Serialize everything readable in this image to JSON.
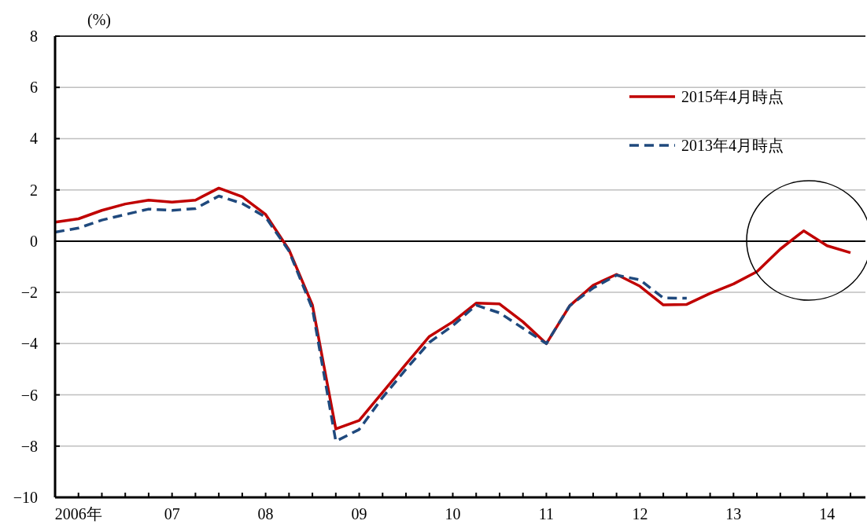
{
  "chart_data": {
    "type": "line",
    "ylabel": "(%)",
    "categories": [
      null,
      "2006年",
      null,
      null,
      null,
      "07",
      null,
      null,
      null,
      "08",
      null,
      null,
      null,
      "09",
      null,
      null,
      null,
      "10",
      null,
      null,
      null,
      "11",
      null,
      null,
      null,
      "12",
      null,
      null,
      null,
      "13",
      null,
      null,
      null,
      "14",
      null
    ],
    "series": [
      {
        "name": "2015年4月時点",
        "color": "#c00000",
        "line_style": "solid",
        "values": [
          0.74,
          0.87,
          1.2,
          1.45,
          1.6,
          1.52,
          1.6,
          2.07,
          1.73,
          1.04,
          -0.34,
          -2.49,
          -7.33,
          -7.0,
          -5.9,
          -4.8,
          -3.72,
          -3.15,
          -2.42,
          -2.45,
          -3.15,
          -4.0,
          -2.52,
          -1.72,
          -1.3,
          -1.76,
          -2.49,
          -2.47,
          -2.04,
          -1.67,
          -1.19,
          -0.31,
          0.4,
          -0.18,
          -0.45
        ]
      },
      {
        "name": "2013年4月時点",
        "color": "#1f497d",
        "line_style": "dashed",
        "values": [
          0.35,
          0.51,
          0.82,
          1.04,
          1.25,
          1.2,
          1.27,
          1.76,
          1.47,
          0.94,
          -0.39,
          -2.64,
          -7.81,
          -7.35,
          -6.1,
          -5.0,
          -3.95,
          -3.3,
          -2.5,
          -2.8,
          -3.4,
          -4.0,
          -2.52,
          -1.83,
          -1.33,
          -1.51,
          -2.22,
          -2.23,
          null,
          null,
          null,
          null,
          null,
          null,
          null
        ]
      }
    ],
    "ylim": [
      -10,
      8
    ],
    "yticks": [
      -10,
      -8,
      -6,
      -4,
      -2,
      0,
      2,
      4,
      6,
      8
    ],
    "grid": "y",
    "legend": "top right",
    "marker": "none"
  }
}
